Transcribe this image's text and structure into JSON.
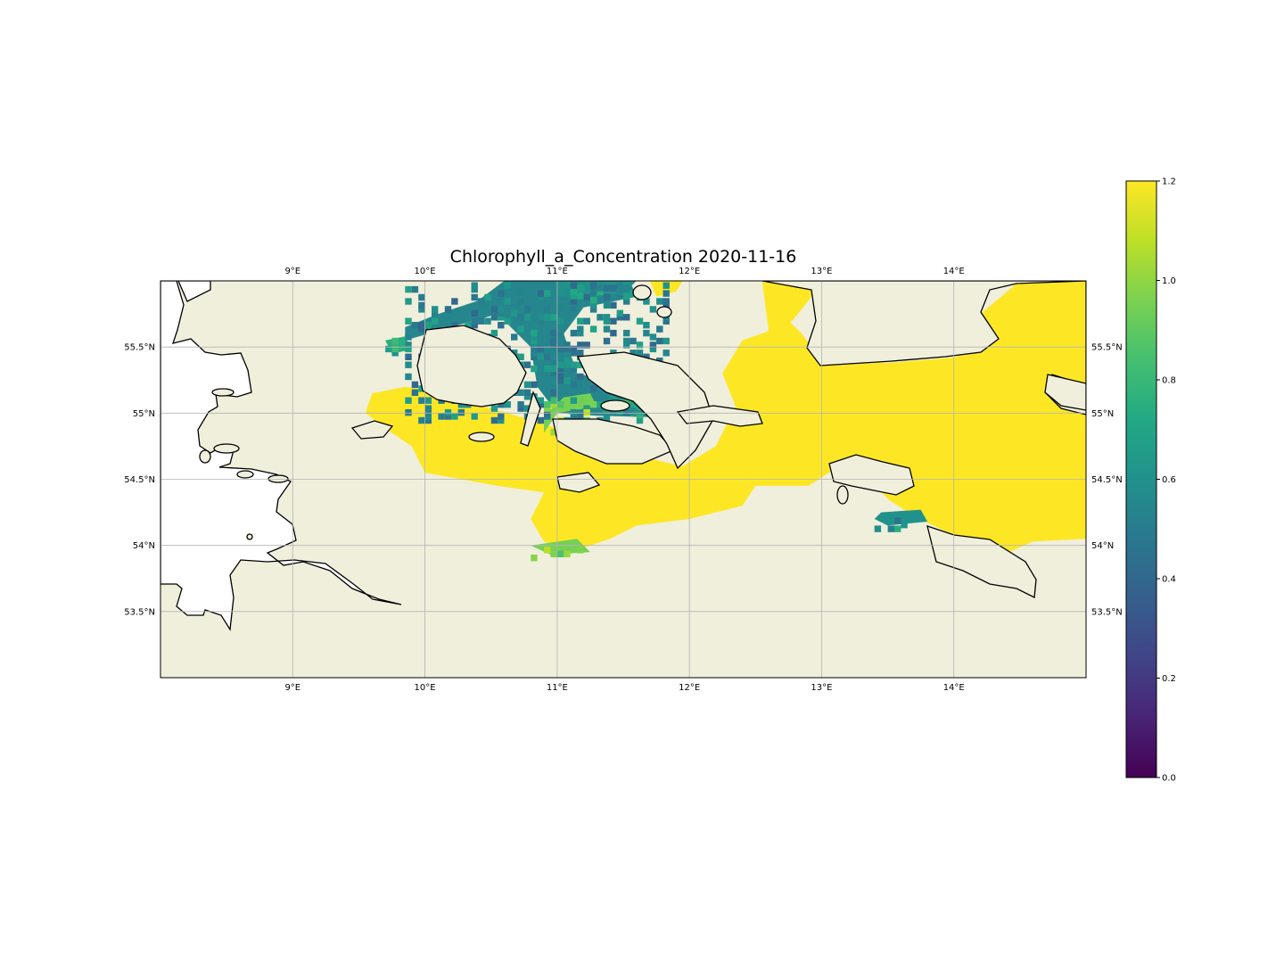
{
  "title": "Chlorophyll_a_Concentration  2020-11-16",
  "map": {
    "extent": {
      "lon_min": 8.0,
      "lon_max": 15.0,
      "lat_min": 53.0,
      "lat_max": 56.0
    },
    "gridlines": true,
    "colors": {
      "land": "#efefdc",
      "water": "#ffffff",
      "coast": "#000000",
      "grid": "#b3b3b3"
    },
    "x_ticks": [
      {
        "value": 9,
        "label": "9°E"
      },
      {
        "value": 10,
        "label": "10°E"
      },
      {
        "value": 11,
        "label": "11°E"
      },
      {
        "value": 12,
        "label": "12°E"
      },
      {
        "value": 13,
        "label": "13°E"
      },
      {
        "value": 14,
        "label": "14°E"
      }
    ],
    "y_ticks": [
      {
        "value": 55.5,
        "label": "55.5°N"
      },
      {
        "value": 55.0,
        "label": "55°N"
      },
      {
        "value": 54.5,
        "label": "54.5°N"
      },
      {
        "value": 54.0,
        "label": "54°N"
      },
      {
        "value": 53.5,
        "label": "53.5°N"
      }
    ],
    "field": {
      "variable": "Chlorophyll_a_Concentration",
      "colormap": "viridis",
      "high_value_color": "#fde725",
      "regions": [
        {
          "name": "western-baltic-bulk",
          "value": 1.2,
          "outline": [
            [
              12.2,
              54.75
            ],
            [
              12.35,
              55.05
            ],
            [
              12.25,
              55.3
            ],
            [
              12.4,
              55.55
            ],
            [
              12.6,
              55.62
            ],
            [
              12.75,
              55.7
            ],
            [
              12.85,
              55.6
            ],
            [
              13.0,
              55.4
            ],
            [
              13.5,
              55.38
            ],
            [
              14.0,
              55.42
            ],
            [
              14.2,
              55.5
            ],
            [
              14.2,
              55.75
            ],
            [
              14.5,
              56.0
            ],
            [
              15.0,
              56.0
            ],
            [
              15.0,
              54.05
            ],
            [
              14.6,
              54.03
            ],
            [
              14.35,
              53.92
            ],
            [
              14.1,
              54.0
            ],
            [
              13.95,
              54.1
            ],
            [
              13.7,
              54.22
            ],
            [
              13.5,
              54.35
            ],
            [
              13.35,
              54.52
            ],
            [
              13.1,
              54.58
            ],
            [
              12.9,
              54.45
            ],
            [
              12.5,
              54.45
            ],
            [
              12.4,
              54.3
            ],
            [
              12.0,
              54.2
            ],
            [
              11.6,
              54.15
            ],
            [
              11.4,
              54.05
            ],
            [
              11.1,
              53.95
            ],
            [
              10.9,
              54.03
            ],
            [
              10.8,
              54.2
            ],
            [
              10.9,
              54.4
            ],
            [
              10.55,
              54.45
            ],
            [
              10.0,
              54.55
            ],
            [
              9.9,
              54.75
            ],
            [
              9.75,
              54.85
            ],
            [
              9.55,
              55.0
            ],
            [
              9.6,
              55.15
            ],
            [
              9.85,
              55.2
            ],
            [
              10.2,
              55.15
            ],
            [
              10.45,
              55.05
            ],
            [
              10.8,
              54.95
            ],
            [
              11.1,
              54.85
            ],
            [
              11.5,
              54.7
            ],
            [
              11.95,
              54.6
            ]
          ]
        },
        {
          "name": "kattegat-east",
          "value": 1.2,
          "outline": [
            [
              12.55,
              56.0
            ],
            [
              13.0,
              56.0
            ],
            [
              12.9,
              55.85
            ],
            [
              12.78,
              55.7
            ],
            [
              12.6,
              55.62
            ]
          ]
        },
        {
          "name": "sound-north",
          "value": 1.2,
          "outline": [
            [
              11.7,
              56.0
            ],
            [
              11.95,
              56.0
            ],
            [
              11.9,
              55.92
            ],
            [
              11.75,
              55.88
            ]
          ]
        },
        {
          "name": "great-belt-mid",
          "value": 0.55,
          "outline": [
            [
              10.6,
              56.0
            ],
            [
              11.55,
              56.0
            ],
            [
              11.6,
              55.88
            ],
            [
              11.2,
              55.8
            ],
            [
              11.05,
              55.6
            ],
            [
              11.15,
              55.3
            ],
            [
              11.5,
              55.22
            ],
            [
              11.85,
              55.1
            ],
            [
              11.7,
              54.97
            ],
            [
              11.3,
              54.98
            ],
            [
              11.0,
              55.0
            ],
            [
              10.85,
              55.2
            ],
            [
              10.8,
              55.5
            ],
            [
              10.55,
              55.75
            ],
            [
              10.2,
              55.65
            ],
            [
              9.85,
              55.55
            ],
            [
              9.85,
              55.65
            ],
            [
              10.1,
              55.75
            ],
            [
              10.4,
              55.85
            ],
            [
              10.6,
              56.0
            ]
          ]
        },
        {
          "name": "great-belt-north",
          "value": 0.6,
          "outline": [
            [
              11.0,
              56.0
            ],
            [
              11.6,
              56.0
            ],
            [
              11.5,
              55.9
            ],
            [
              11.0,
              55.88
            ]
          ]
        },
        {
          "name": "belt-south-gradient",
          "value": 0.95,
          "outline": [
            [
              10.9,
              54.85
            ],
            [
              11.0,
              55.0
            ],
            [
              11.3,
              55.05
            ],
            [
              11.25,
              55.15
            ],
            [
              11.05,
              55.12
            ],
            [
              10.9,
              54.98
            ]
          ]
        },
        {
          "name": "belt-east-green",
          "value": 0.7,
          "outline": [
            [
              11.35,
              55.1
            ],
            [
              11.75,
              55.12
            ],
            [
              11.85,
              55.0
            ],
            [
              11.55,
              54.98
            ],
            [
              11.35,
              55.0
            ]
          ]
        },
        {
          "name": "little-belt-mouth",
          "value": 0.75,
          "outline": [
            [
              9.7,
              55.55
            ],
            [
              9.85,
              55.58
            ],
            [
              9.9,
              55.48
            ],
            [
              9.75,
              55.45
            ]
          ]
        },
        {
          "name": "greifswald-patch",
          "value": 0.6,
          "outline": [
            [
              13.45,
              54.25
            ],
            [
              13.75,
              54.27
            ],
            [
              13.8,
              54.18
            ],
            [
              13.5,
              54.15
            ],
            [
              13.4,
              54.2
            ]
          ]
        },
        {
          "name": "wismar-bay-gradient",
          "value": 0.95,
          "outline": [
            [
              10.8,
              54.0
            ],
            [
              11.15,
              54.05
            ],
            [
              11.25,
              53.95
            ],
            [
              10.95,
              53.93
            ]
          ]
        }
      ]
    }
  },
  "colorbar": {
    "min": 0.0,
    "max": 1.2,
    "ticks": [
      {
        "value": 0.0,
        "label": "0.0"
      },
      {
        "value": 0.2,
        "label": "0.2"
      },
      {
        "value": 0.4,
        "label": "0.4"
      },
      {
        "value": 0.6,
        "label": "0.6"
      },
      {
        "value": 0.8,
        "label": "0.8"
      },
      {
        "value": 1.0,
        "label": "1.0"
      },
      {
        "value": 1.2,
        "label": "1.2"
      }
    ]
  }
}
